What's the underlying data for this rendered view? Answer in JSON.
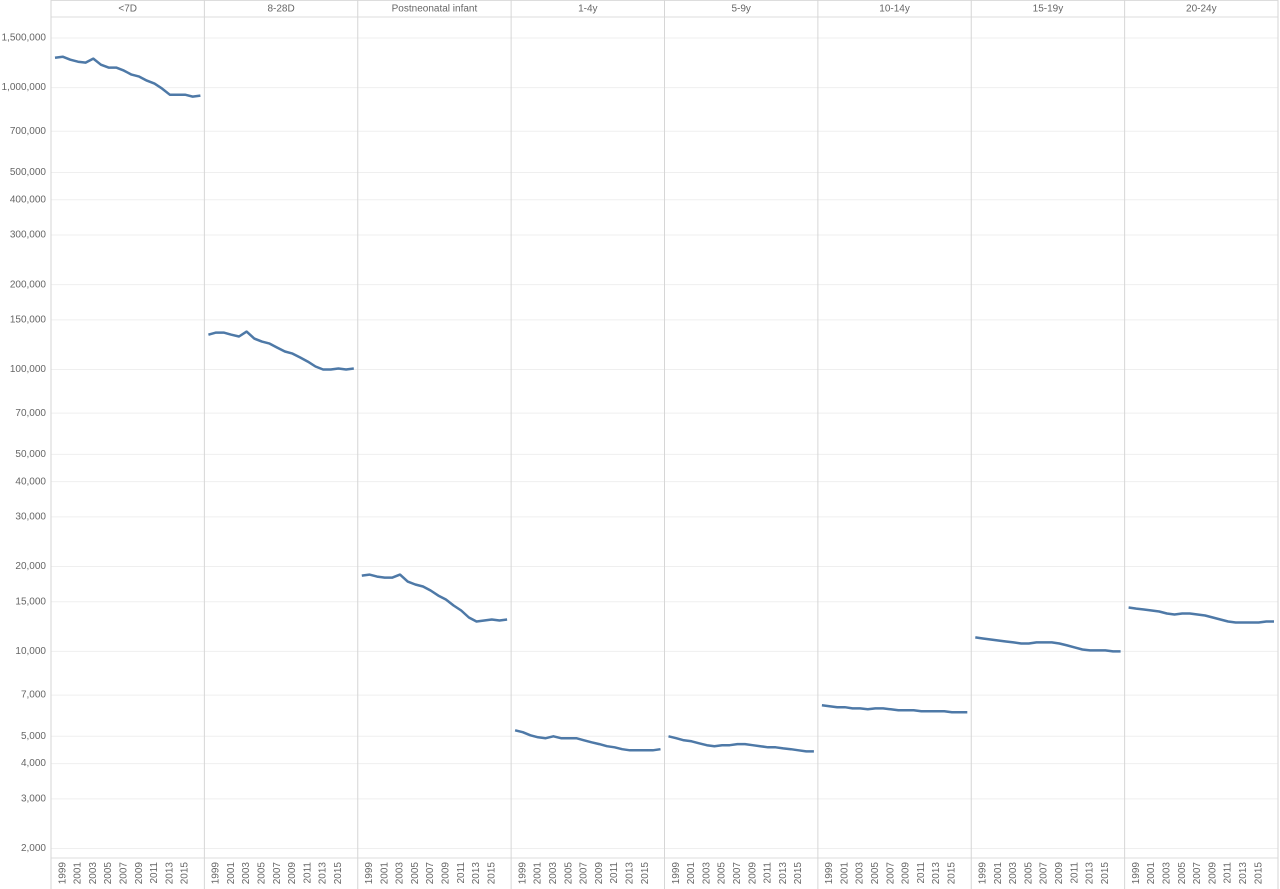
{
  "chart_data": {
    "type": "line",
    "yscale": "log",
    "grid": true,
    "color": "#4e79a7",
    "ylim": [
      1850,
      1780000
    ],
    "yticks": [
      {
        "value": 2000,
        "label": "2,000"
      },
      {
        "value": 3000,
        "label": "3,000"
      },
      {
        "value": 4000,
        "label": "4,000"
      },
      {
        "value": 5000,
        "label": "5,000"
      },
      {
        "value": 7000,
        "label": "7,000"
      },
      {
        "value": 10000,
        "label": "10,000"
      },
      {
        "value": 15000,
        "label": "15,000"
      },
      {
        "value": 20000,
        "label": "20,000"
      },
      {
        "value": 30000,
        "label": "30,000"
      },
      {
        "value": 40000,
        "label": "40,000"
      },
      {
        "value": 50000,
        "label": "50,000"
      },
      {
        "value": 70000,
        "label": "70,000"
      },
      {
        "value": 100000,
        "label": "100,000"
      },
      {
        "value": 150000,
        "label": "150,000"
      },
      {
        "value": 200000,
        "label": "200,000"
      },
      {
        "value": 300000,
        "label": "300,000"
      },
      {
        "value": 400000,
        "label": "400,000"
      },
      {
        "value": 500000,
        "label": "500,000"
      },
      {
        "value": 700000,
        "label": "700,000"
      },
      {
        "value": 1000000,
        "label": "1,000,000"
      },
      {
        "value": 1500000,
        "label": "1,500,000"
      }
    ],
    "categories": [
      null,
      "1999",
      null,
      "2001",
      null,
      "2003",
      null,
      "2005",
      null,
      "2007",
      null,
      "2009",
      null,
      "2011",
      null,
      "2013",
      null,
      "2015",
      null,
      null
    ],
    "panels": [
      {
        "name": "<7D",
        "values": [
          1277000,
          1287000,
          1256000,
          1236000,
          1226000,
          1267000,
          1206000,
          1177000,
          1177000,
          1149000,
          1112000,
          1094000,
          1059000,
          1033000,
          992000,
          944000,
          944000,
          944000,
          929000,
          937000
        ]
      },
      {
        "name": "8-28D",
        "values": [
          132900,
          135200,
          135200,
          132900,
          130900,
          136300,
          128700,
          125600,
          123600,
          119600,
          115800,
          113900,
          110300,
          106700,
          102500,
          100000,
          100000,
          100800,
          100000,
          100800
        ]
      },
      {
        "name": "Postneonatal infant",
        "values": [
          18580,
          18730,
          18430,
          18280,
          18280,
          18730,
          17690,
          17270,
          16990,
          16440,
          15780,
          15280,
          14550,
          13970,
          13190,
          12770,
          12870,
          12980,
          12870,
          12980
        ]
      },
      {
        "name": "1-4y",
        "values": [
          5250,
          5170,
          5040,
          4960,
          4920,
          5000,
          4920,
          4920,
          4920,
          4840,
          4760,
          4690,
          4610,
          4570,
          4500,
          4460,
          4460,
          4460,
          4460,
          4500
        ]
      },
      {
        "name": "5-9y",
        "values": [
          5000,
          4920,
          4840,
          4800,
          4720,
          4650,
          4610,
          4650,
          4650,
          4690,
          4690,
          4650,
          4610,
          4570,
          4570,
          4530,
          4500,
          4460,
          4420,
          4420
        ]
      },
      {
        "name": "10-14y",
        "values": [
          6440,
          6390,
          6340,
          6340,
          6280,
          6280,
          6230,
          6280,
          6280,
          6230,
          6180,
          6180,
          6180,
          6130,
          6130,
          6130,
          6130,
          6080,
          6080,
          6080
        ]
      },
      {
        "name": "15-19y",
        "values": [
          11210,
          11110,
          11020,
          10930,
          10840,
          10760,
          10670,
          10670,
          10760,
          10760,
          10760,
          10670,
          10500,
          10330,
          10160,
          10080,
          10080,
          10080,
          10000,
          10000
        ]
      },
      {
        "name": "20-24y",
        "values": [
          14310,
          14190,
          14080,
          13970,
          13850,
          13630,
          13520,
          13630,
          13630,
          13520,
          13410,
          13190,
          12980,
          12770,
          12660,
          12660,
          12660,
          12660,
          12770,
          12770
        ]
      }
    ]
  }
}
